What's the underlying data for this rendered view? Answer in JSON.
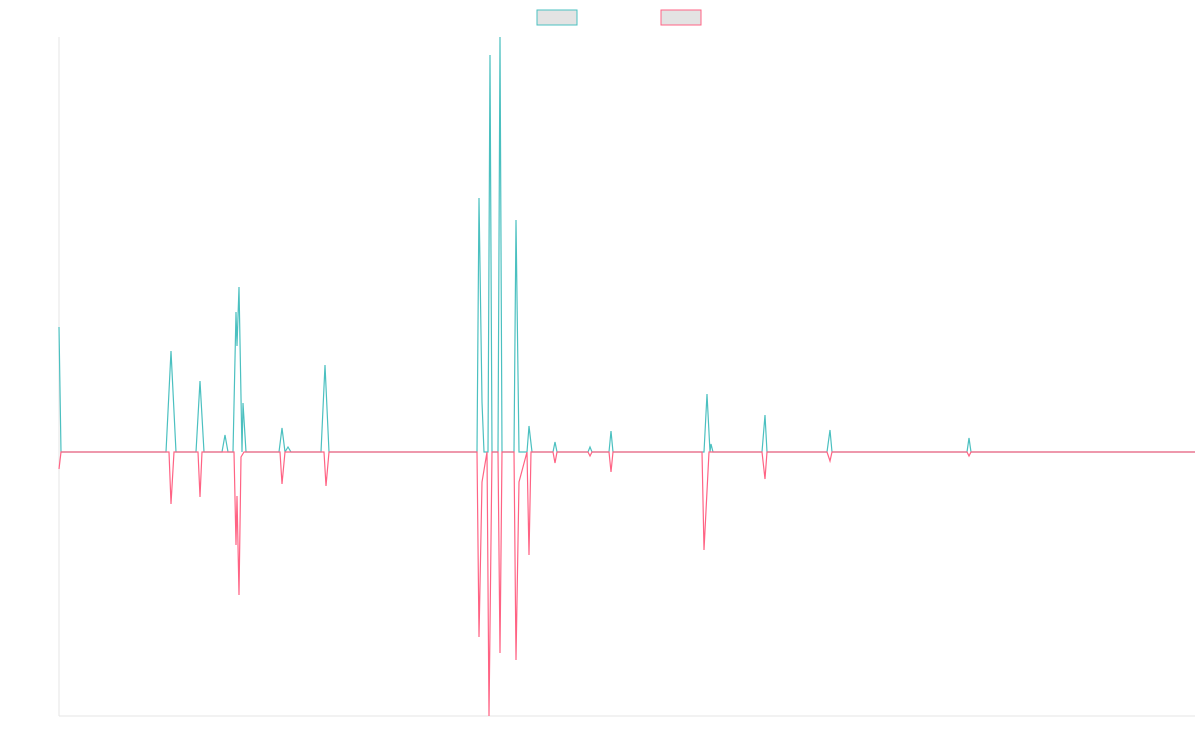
{
  "chart_data": {
    "type": "line",
    "legend": "top",
    "xlim": [
      0,
      1136
    ],
    "ylim": [
      -264,
      415
    ],
    "series": [
      {
        "color": "#4bc0c0",
        "x": [
          0,
          2,
          107,
          112,
          117,
          137,
          141,
          145,
          163,
          166,
          169,
          174,
          177,
          178,
          180,
          183,
          184,
          187,
          220,
          223,
          226,
          229,
          232,
          262,
          266,
          270,
          418,
          420,
          423,
          425,
          429,
          431,
          433,
          439,
          441,
          443,
          455,
          457,
          460,
          468,
          470,
          473,
          494,
          496,
          498,
          529,
          531,
          533,
          550,
          552,
          554,
          645,
          648,
          651,
          652,
          654,
          703,
          706,
          708,
          768,
          771,
          773,
          908,
          910,
          912,
          1136
        ],
        "values": [
          125,
          0,
          0,
          101,
          0,
          0,
          71,
          0,
          0,
          17,
          0,
          0,
          140,
          106,
          165,
          0,
          49,
          0,
          0,
          24,
          0,
          5,
          0,
          0,
          87,
          0,
          0,
          254,
          50,
          0,
          0,
          397,
          0,
          0,
          415,
          0,
          0,
          232,
          0,
          0,
          26,
          0,
          0,
          10,
          0,
          0,
          5,
          0,
          0,
          21,
          0,
          0,
          58,
          0,
          8,
          0,
          0,
          37,
          0,
          0,
          22,
          0,
          0,
          14,
          0,
          0
        ]
      },
      {
        "color": "#ff6384",
        "x": [
          0,
          2,
          110,
          112,
          115,
          139,
          141,
          143,
          175,
          177,
          178,
          180,
          182,
          185,
          221,
          223,
          226,
          265,
          267,
          270,
          418,
          420,
          423,
          428,
          430,
          433,
          439,
          441,
          443,
          455,
          457,
          460,
          468,
          470,
          472,
          494,
          496,
          498,
          529,
          531,
          533,
          550,
          552,
          554,
          643,
          645,
          650,
          703,
          706,
          708,
          768,
          771,
          773,
          908,
          910,
          912,
          1136
        ],
        "values": [
          -17,
          0,
          0,
          -52,
          0,
          0,
          -45,
          0,
          0,
          -93,
          -44,
          -143,
          -5,
          0,
          0,
          -32,
          0,
          0,
          -34,
          0,
          0,
          -185,
          -30,
          0,
          -264,
          0,
          0,
          -201,
          0,
          0,
          -208,
          -30,
          0,
          -103,
          0,
          0,
          -11,
          0,
          0,
          -4,
          0,
          0,
          -20,
          0,
          0,
          -98,
          0,
          0,
          -27,
          0,
          0,
          -9,
          0,
          0,
          -4,
          0,
          0
        ]
      }
    ]
  }
}
